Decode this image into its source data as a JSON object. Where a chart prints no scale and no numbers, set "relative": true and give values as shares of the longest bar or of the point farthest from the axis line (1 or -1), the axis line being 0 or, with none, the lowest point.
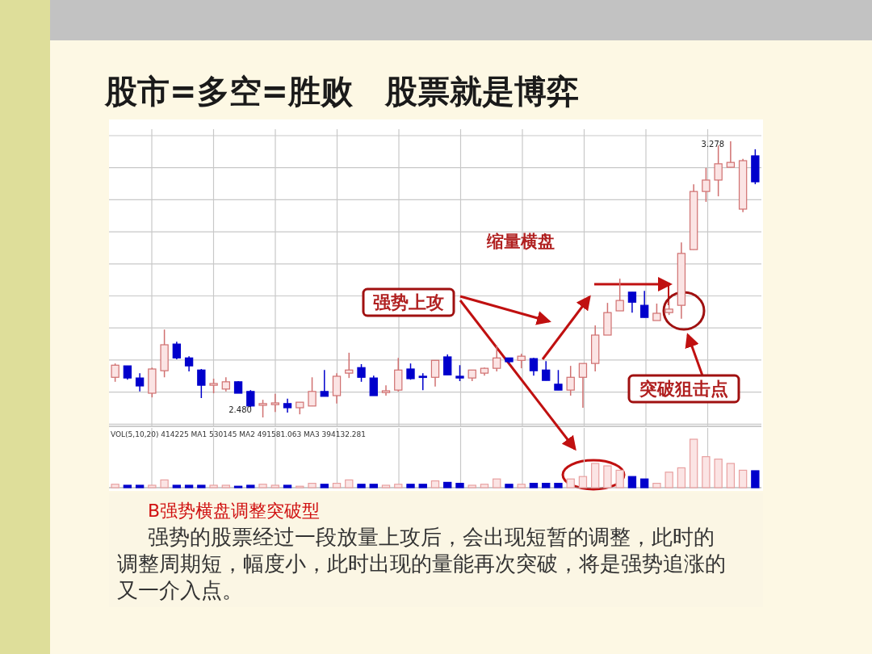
{
  "chart_data": [
    {
      "type": "candlestick",
      "title": "股市=多空=胜败　股票就是博弈",
      "grid": true,
      "categories": [
        null,
        null,
        null,
        null,
        null,
        null,
        null,
        null,
        null,
        null,
        null,
        null,
        null,
        null,
        null,
        null,
        null,
        null,
        null,
        null,
        null,
        null,
        null,
        null,
        null,
        null,
        null,
        null,
        null,
        null,
        null,
        null,
        null,
        null,
        null,
        null,
        null,
        null,
        null,
        null,
        null,
        null,
        null,
        null,
        null,
        null,
        null,
        null,
        null,
        null,
        null,
        null,
        null
      ],
      "ohlc": [
        [
          2.596,
          2.636,
          2.583,
          2.631
        ],
        [
          2.629,
          2.629,
          2.589,
          2.594
        ],
        [
          2.594,
          2.608,
          2.555,
          2.571
        ],
        [
          2.55,
          2.624,
          2.538,
          2.62
        ],
        [
          2.615,
          2.734,
          2.596,
          2.69
        ],
        [
          2.692,
          2.699,
          2.648,
          2.652
        ],
        [
          2.652,
          2.657,
          2.613,
          2.629
        ],
        [
          2.617,
          2.62,
          2.536,
          2.573
        ],
        [
          2.573,
          2.592,
          2.55,
          2.578
        ],
        [
          2.562,
          2.596,
          2.555,
          2.583
        ],
        [
          2.583,
          2.585,
          2.55,
          2.55
        ],
        [
          2.555,
          2.559,
          2.51,
          2.513
        ],
        [
          2.515,
          2.531,
          2.48,
          2.52
        ],
        [
          2.517,
          2.548,
          2.496,
          2.522
        ],
        [
          2.52,
          2.534,
          2.494,
          2.508
        ],
        [
          2.508,
          2.524,
          2.489,
          2.524
        ],
        [
          2.513,
          2.596,
          2.513,
          2.555
        ],
        [
          2.555,
          2.617,
          2.541,
          2.541
        ],
        [
          2.543,
          2.608,
          2.52,
          2.599
        ],
        [
          2.608,
          2.667,
          2.594,
          2.617
        ],
        [
          2.624,
          2.634,
          2.583,
          2.596
        ],
        [
          2.594,
          2.601,
          2.543,
          2.543
        ],
        [
          2.552,
          2.573,
          2.543,
          2.557
        ],
        [
          2.559,
          2.652,
          2.555,
          2.617
        ],
        [
          2.62,
          2.636,
          2.589,
          2.592
        ],
        [
          2.599,
          2.608,
          2.559,
          2.596
        ],
        [
          2.596,
          2.645,
          2.569,
          2.645
        ],
        [
          2.655,
          2.662,
          2.603,
          2.603
        ],
        [
          2.599,
          2.631,
          2.585,
          2.594
        ],
        [
          2.594,
          2.617,
          2.585,
          2.617
        ],
        [
          2.608,
          2.624,
          2.601,
          2.622
        ],
        [
          2.622,
          2.688,
          2.613,
          2.652
        ],
        [
          2.652,
          2.652,
          2.636,
          2.641
        ],
        [
          2.645,
          2.664,
          2.622,
          2.657
        ],
        [
          2.65,
          2.652,
          2.601,
          2.615
        ],
        [
          2.617,
          2.643,
          2.587,
          2.587
        ],
        [
          2.576,
          2.617,
          2.559,
          2.559
        ],
        [
          2.559,
          2.629,
          2.543,
          2.596
        ],
        [
          2.596,
          2.636,
          2.508,
          2.636
        ],
        [
          2.636,
          2.746,
          2.613,
          2.718
        ],
        [
          2.718,
          2.811,
          2.718,
          2.783
        ],
        [
          2.788,
          2.881,
          2.788,
          2.818
        ],
        [
          2.842,
          2.842,
          2.783,
          2.813
        ],
        [
          2.804,
          2.846,
          2.769,
          2.769
        ],
        [
          2.76,
          2.809,
          2.76,
          2.781
        ],
        [
          2.783,
          2.816,
          2.776,
          2.793
        ],
        [
          2.804,
          2.986,
          2.765,
          2.954
        ],
        [
          2.965,
          3.154,
          2.965,
          3.133
        ],
        [
          3.133,
          3.201,
          3.103,
          3.166
        ],
        [
          3.166,
          3.266,
          3.119,
          3.213
        ],
        [
          3.203,
          3.278,
          3.203,
          3.217
        ],
        [
          3.082,
          3.227,
          3.073,
          3.222
        ],
        [
          3.236,
          3.255,
          3.154,
          3.161
        ]
      ],
      "annotations": [
        "缩量横盘",
        "强势上攻",
        "突破狙击点",
        "3.278",
        "2.480"
      ]
    },
    {
      "type": "bar",
      "relative": true,
      "grid": "x",
      "title": "VOL(5,10,20)  414225 MA1 530145 MA2 491581.063 MA3 394132.281",
      "categories": [
        null,
        null,
        null,
        null,
        null,
        null,
        null,
        null,
        null,
        null,
        null,
        null,
        null,
        null,
        null,
        null,
        null,
        null,
        null,
        null,
        null,
        null,
        null,
        null,
        null,
        null,
        null,
        null,
        null,
        null,
        null,
        null,
        null,
        null,
        null,
        null,
        null,
        null,
        null,
        null,
        null,
        null,
        null,
        null,
        null,
        null,
        null,
        null,
        null,
        null,
        null,
        null,
        null
      ],
      "values": [
        0.07,
        0.05,
        0.05,
        0.05,
        0.16,
        0.05,
        0.05,
        0.05,
        0.05,
        0.05,
        0.03,
        0.05,
        0.07,
        0.05,
        0.05,
        0.03,
        0.09,
        0.07,
        0.09,
        0.16,
        0.07,
        0.07,
        0.05,
        0.07,
        0.07,
        0.07,
        0.14,
        0.11,
        0.09,
        0.05,
        0.07,
        0.18,
        0.07,
        0.07,
        0.09,
        0.09,
        0.09,
        0.18,
        0.23,
        0.5,
        0.45,
        0.36,
        0.23,
        0.18,
        0.09,
        0.32,
        0.41,
        1,
        0.64,
        0.59,
        0.5,
        0.36,
        0.35
      ],
      "colors": [
        "#e8a0a0",
        "#0000cc",
        "#0000cc",
        "#e8a0a0",
        "#e8a0a0",
        "#0000cc",
        "#0000cc",
        "#0000cc",
        "#e8a0a0",
        "#e8a0a0",
        "#0000cc",
        "#0000cc",
        "#e8a0a0",
        "#e8a0a0",
        "#0000cc",
        "#e8a0a0",
        "#e8a0a0",
        "#0000cc",
        "#e8a0a0",
        "#e8a0a0",
        "#0000cc",
        "#0000cc",
        "#e8a0a0",
        "#e8a0a0",
        "#0000cc",
        "#0000cc",
        "#e8a0a0",
        "#0000cc",
        "#0000cc",
        "#e8a0a0",
        "#e8a0a0",
        "#e8a0a0",
        "#0000cc",
        "#e8a0a0",
        "#0000cc",
        "#0000cc",
        "#0000cc",
        "#e8a0a0",
        "#e8a0a0",
        "#e8a0a0",
        "#e8a0a0",
        "#e8a0a0",
        "#0000cc",
        "#0000cc",
        "#e8a0a0",
        "#e8a0a0",
        "#e8a0a0",
        "#e8a0a0",
        "#e8a0a0",
        "#e8a0a0",
        "#e8a0a0",
        "#e8a0a0",
        "#0000cc"
      ],
      "annotations": [
        "B强势横盘调整突破型",
        "强势的股票经过一段放量上攻后，会出现短暂的调整，此时的调整周期短，幅度小，此时出现的量能再次突破，将是强势追涨的又一介入点。"
      ]
    }
  ]
}
